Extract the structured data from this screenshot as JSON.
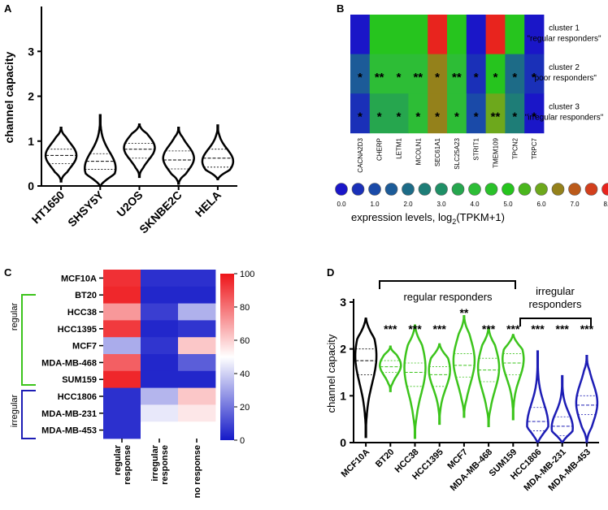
{
  "chart_data": [
    {
      "panel": "A",
      "type": "violin",
      "ylabel": "channel capacity",
      "ylim": [
        0,
        4
      ],
      "yticks": [
        "0",
        "1",
        "2",
        "3"
      ],
      "categories": [
        "HT1650",
        "SHSY5Y",
        "U2OS",
        "SKNBE2C",
        "HELA"
      ],
      "violins": [
        {
          "min": 0.1,
          "max": 1.3,
          "median": 0.68,
          "q1": 0.5,
          "q3": 0.82,
          "peak": 0.68
        },
        {
          "min": 0.0,
          "max": 1.58,
          "median": 0.55,
          "q1": 0.37,
          "q3": 0.72,
          "peak": 0.4
        },
        {
          "min": 0.2,
          "max": 1.37,
          "median": 0.82,
          "q1": 0.62,
          "q3": 0.95,
          "peak": 0.85
        },
        {
          "min": 0.05,
          "max": 1.3,
          "median": 0.58,
          "q1": 0.38,
          "q3": 0.78,
          "peak": 0.62
        },
        {
          "min": 0.15,
          "max": 1.35,
          "median": 0.62,
          "q1": 0.42,
          "q3": 0.82,
          "peak": 0.55
        }
      ]
    },
    {
      "panel": "B",
      "type": "heatmap",
      "genes": [
        "CACNA2D3",
        "CHERP",
        "LETM1",
        "MCOLN1",
        "SEC61A1",
        "SLC25A23",
        "STRIT1",
        "TMEM109",
        "TPCN2",
        "TRPC7"
      ],
      "rows": [
        "cluster 1",
        "cluster 2",
        "cluster 3"
      ],
      "row_labels": [
        {
          "line1": "cluster 1",
          "line2": "\"regular responders\""
        },
        {
          "line1": "cluster 2",
          "line2": "\"poor responders\""
        },
        {
          "line1": "cluster 3",
          "line2": "\"irregular responders\""
        }
      ],
      "values": [
        [
          0.0,
          5.0,
          5.0,
          5.0,
          8.0,
          5.0,
          0.0,
          8.0,
          5.0,
          0.0
        ],
        [
          1.5,
          4.0,
          4.0,
          4.0,
          6.5,
          4.0,
          0.5,
          5.0,
          2.0,
          0.5
        ],
        [
          0.5,
          3.5,
          3.5,
          4.0,
          6.5,
          4.0,
          1.0,
          6.0,
          2.5,
          0.0
        ]
      ],
      "stars": [
        [
          "",
          "",
          "",
          "",
          "",
          "",
          "",
          "",
          "",
          ""
        ],
        [
          "*",
          "**",
          "*",
          "**",
          "*",
          "**",
          "*",
          "*",
          "*",
          "*"
        ],
        [
          "*",
          "*",
          "*",
          "*",
          "*",
          "*",
          "*",
          "**",
          "*",
          "*"
        ]
      ],
      "scale_labels": [
        "0.0",
        "1.0",
        "2.0",
        "3.0",
        "4.0",
        "5.0",
        "6.0",
        "7.0",
        "8.0"
      ],
      "scale_label": "expression levels, log",
      "scale_label_sub": "2",
      "scale_label_end": "(TPKM+1)"
    },
    {
      "panel": "C",
      "type": "heatmap",
      "rows": [
        "MCF10A",
        "BT20",
        "HCC38",
        "HCC1395",
        "MCF7",
        "MDA-MB-468",
        "SUM159",
        "HCC1806",
        "MDA-MB-231",
        "MDA-MB-453"
      ],
      "columns": [
        {
          "line1": "regular",
          "line2": "response"
        },
        {
          "line1": "irregular",
          "line2": "response"
        },
        {
          "line1": "no response",
          "line2": ""
        }
      ],
      "values": [
        [
          94,
          5,
          5
        ],
        [
          96,
          3,
          3
        ],
        [
          72,
          8,
          33
        ],
        [
          92,
          3,
          6
        ],
        [
          32,
          6,
          62
        ],
        [
          84,
          3,
          15
        ],
        [
          96,
          3,
          3
        ],
        [
          5,
          34,
          62
        ],
        [
          5,
          45,
          55
        ],
        [
          5,
          50,
          50
        ]
      ],
      "colorbar_ticks": [
        "0",
        "20",
        "40",
        "60",
        "80",
        "100"
      ],
      "groups": [
        "regular",
        "irregular"
      ]
    },
    {
      "panel": "D",
      "type": "violin",
      "ylabel": "channel capacity",
      "ylim": [
        0,
        3
      ],
      "yticks": [
        "0",
        "1",
        "2",
        "3"
      ],
      "categories": [
        "MCF10A",
        "BT20",
        "HCC38",
        "HCC1395",
        "MCF7",
        "MDA-MB-468",
        "SUM159",
        "HCC1806",
        "MDA-MB-231",
        "MDA-MB-453"
      ],
      "colors": [
        "#000000",
        "#3cc41c",
        "#3cc41c",
        "#3cc41c",
        "#3cc41c",
        "#3cc41c",
        "#3cc41c",
        "#1d1db5",
        "#1d1db5",
        "#1d1db5"
      ],
      "stars": [
        "",
        "***",
        "***",
        "***",
        "**",
        "***",
        "***",
        "***",
        "***",
        "***"
      ],
      "violins": [
        {
          "min": 0.12,
          "max": 2.65,
          "median": 1.75,
          "q1": 1.45,
          "q3": 2.0,
          "peak": 1.85
        },
        {
          "min": 1.1,
          "max": 2.05,
          "median": 1.62,
          "q1": 1.5,
          "q3": 1.75,
          "peak": 1.65
        },
        {
          "min": 0.1,
          "max": 2.5,
          "median": 1.5,
          "q1": 1.2,
          "q3": 1.7,
          "peak": 1.6
        },
        {
          "min": 0.4,
          "max": 2.1,
          "median": 1.45,
          "q1": 1.2,
          "q3": 1.62,
          "peak": 1.55
        },
        {
          "min": 0.55,
          "max": 2.7,
          "median": 1.65,
          "q1": 1.4,
          "q3": 1.9,
          "peak": 1.75
        },
        {
          "min": 0.35,
          "max": 2.45,
          "median": 1.55,
          "q1": 1.3,
          "q3": 1.8,
          "peak": 1.6
        },
        {
          "min": 0.5,
          "max": 2.3,
          "median": 1.7,
          "q1": 1.45,
          "q3": 1.9,
          "peak": 1.78
        },
        {
          "min": 0.0,
          "max": 1.95,
          "median": 0.45,
          "q1": 0.25,
          "q3": 0.75,
          "peak": 0.38
        },
        {
          "min": 0.0,
          "max": 1.42,
          "median": 0.35,
          "q1": 0.15,
          "q3": 0.55,
          "peak": 0.32
        },
        {
          "min": 0.0,
          "max": 1.85,
          "median": 0.8,
          "q1": 0.6,
          "q3": 1.0,
          "peak": 0.85
        }
      ],
      "group_labels": {
        "regular": "regular responders",
        "irregular_line1": "irregular",
        "irregular_line2": "responders"
      }
    }
  ],
  "panels": {
    "a": "A",
    "b": "B",
    "c": "C",
    "d": "D"
  }
}
